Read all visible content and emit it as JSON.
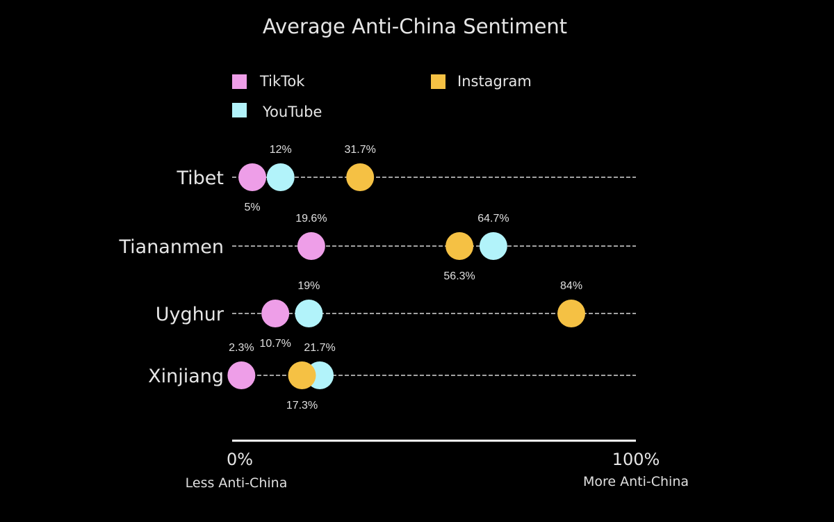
{
  "chart_data": {
    "type": "scatter",
    "title": "Average Anti-China Sentiment",
    "categories": [
      "Tibet",
      "Tiananmen",
      "Uyghur",
      "Xinjiang"
    ],
    "series": [
      {
        "name": "TikTok",
        "color": "#ee9ee8",
        "values": [
          5,
          19.6,
          10.7,
          2.3
        ],
        "labels": [
          "5%",
          "19.6%",
          "10.7%",
          "2.3%"
        ]
      },
      {
        "name": "YouTube",
        "color": "#b2f3fa",
        "values": [
          12,
          64.7,
          19,
          21.7
        ],
        "labels": [
          "12%",
          "64.7%",
          "19%",
          "21.7%"
        ]
      },
      {
        "name": "Instagram",
        "color": "#f5c144",
        "values": [
          31.7,
          56.3,
          84,
          17.3
        ],
        "labels": [
          "31.7%",
          "56.3%",
          "84%",
          "17.3%"
        ]
      }
    ],
    "xlim": [
      0,
      100
    ],
    "x_axis": {
      "min_label": "0%",
      "max_label": "100%",
      "min_caption": "Less Anti-China",
      "max_caption": "More Anti-China"
    },
    "legend": [
      "TikTok",
      "Instagram",
      "YouTube"
    ]
  }
}
